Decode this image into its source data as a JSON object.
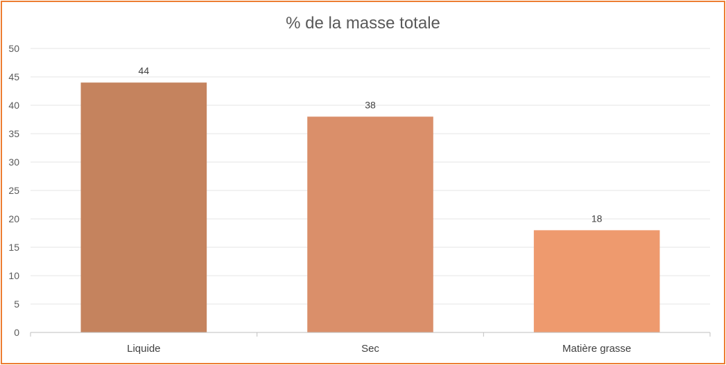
{
  "chart_data": {
    "type": "bar",
    "title": "% de la masse totale",
    "xlabel": "",
    "ylabel": "",
    "categories": [
      "Liquide",
      "Sec",
      "Matière grasse"
    ],
    "values": [
      44,
      38,
      18
    ],
    "data_labels": [
      "44",
      "38",
      "18"
    ],
    "ylim": [
      0,
      50
    ],
    "yticks": [
      0,
      5,
      10,
      15,
      20,
      25,
      30,
      35,
      40,
      45,
      50
    ],
    "grid": true,
    "legend": "none",
    "colors": [
      "#C5835E",
      "#DA8F6A",
      "#EE9A6E"
    ],
    "border_color": "#ED7D31"
  }
}
